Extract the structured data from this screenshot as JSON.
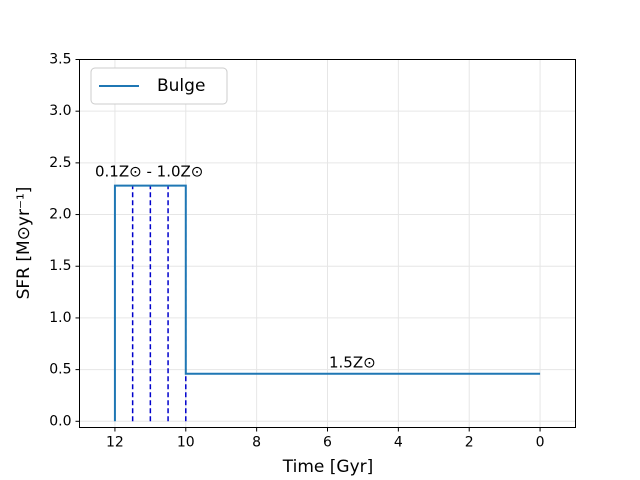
{
  "chart_data": {
    "type": "line",
    "xlabel": "Time [Gyr]",
    "ylabel": "SFR [M⊙yr⁻¹]",
    "xlim": [
      13,
      -1
    ],
    "ylim": [
      -0.06,
      3.5
    ],
    "xticks": [
      12,
      10,
      8,
      6,
      4,
      2,
      0
    ],
    "yticks": [
      {
        "value": 0,
        "label": "0.0"
      },
      0.5,
      {
        "value": 1,
        "label": "1.0"
      },
      1.5,
      {
        "value": 2,
        "label": "2.0"
      },
      2.5,
      {
        "value": 3,
        "label": "3.0"
      },
      3.5
    ],
    "grid": true,
    "legend": "upper left",
    "series": [
      {
        "name": "Bulge",
        "color": "#1f77b4",
        "x": [
          12,
          12,
          10,
          10,
          0
        ],
        "values": [
          0,
          2.28,
          2.28,
          0.46,
          0.46
        ]
      }
    ],
    "vlines": {
      "x": [
        11.5,
        11,
        10.5,
        10
      ],
      "ymin": 0,
      "ymax": 2.28,
      "color": "#0000cc",
      "style": "dashed"
    },
    "annotations": [
      "0.1Z⊙ - 1.0Z⊙",
      "1.5Z⊙"
    ]
  }
}
